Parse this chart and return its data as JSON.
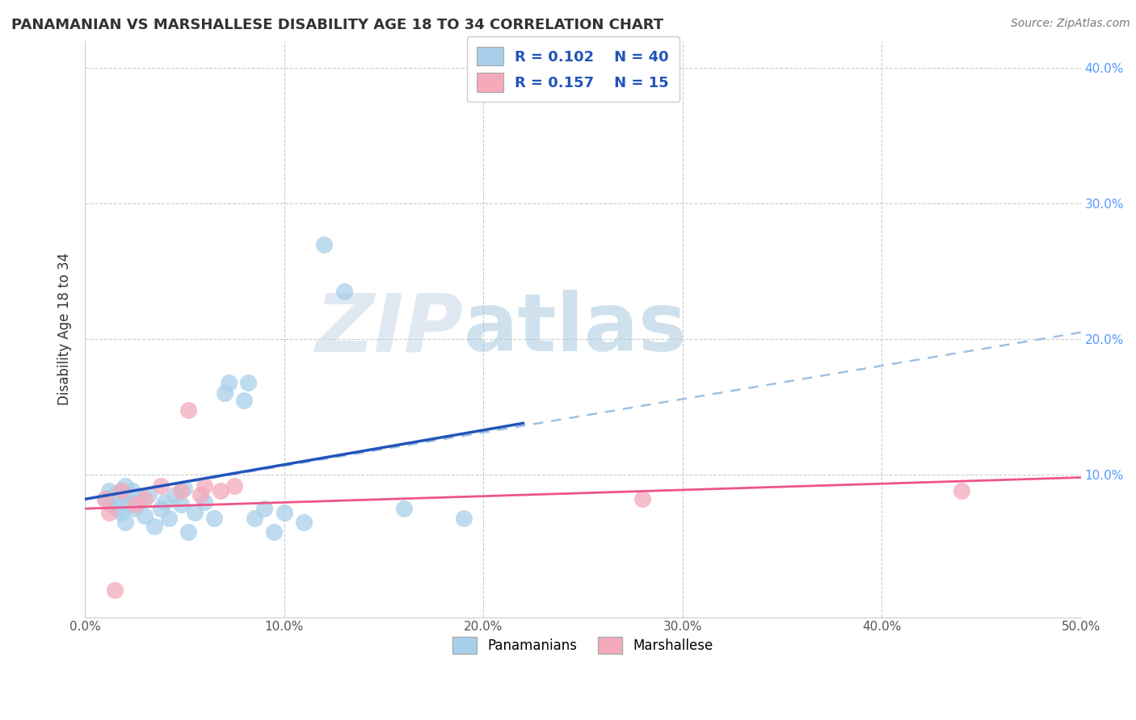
{
  "title": "PANAMANIAN VS MARSHALLESE DISABILITY AGE 18 TO 34 CORRELATION CHART",
  "source": "Source: ZipAtlas.com",
  "ylabel": "Disability Age 18 to 34",
  "xlim": [
    0.0,
    0.5
  ],
  "ylim": [
    -0.005,
    0.42
  ],
  "legend_r1": "R = 0.102",
  "legend_n1": "N = 40",
  "legend_r2": "R = 0.157",
  "legend_n2": "N = 15",
  "blue_color": "#A8CFEA",
  "pink_color": "#F4AABB",
  "blue_line_color": "#2255BB",
  "pink_line_color": "#EE5588",
  "dashed_line_color": "#A0C0E0",
  "watermark_color": "#D5E9F5",
  "background_color": "#FFFFFF",
  "grid_color": "#CCCCCC",
  "pan_x": [
    0.01,
    0.012,
    0.013,
    0.015,
    0.016,
    0.018,
    0.018,
    0.02,
    0.02,
    0.02,
    0.022,
    0.024,
    0.025,
    0.028,
    0.03,
    0.032,
    0.035,
    0.038,
    0.04,
    0.042,
    0.045,
    0.048,
    0.05,
    0.052,
    0.055,
    0.06,
    0.065,
    0.07,
    0.072,
    0.08,
    0.082,
    0.085,
    0.09,
    0.095,
    0.1,
    0.11,
    0.12,
    0.13,
    0.16,
    0.19
  ],
  "pan_y": [
    0.082,
    0.088,
    0.078,
    0.085,
    0.075,
    0.088,
    0.072,
    0.085,
    0.092,
    0.065,
    0.078,
    0.088,
    0.075,
    0.082,
    0.07,
    0.085,
    0.062,
    0.075,
    0.08,
    0.068,
    0.085,
    0.078,
    0.09,
    0.058,
    0.072,
    0.08,
    0.068,
    0.16,
    0.168,
    0.155,
    0.168,
    0.068,
    0.075,
    0.058,
    0.072,
    0.065,
    0.27,
    0.235,
    0.075,
    0.068
  ],
  "mar_x": [
    0.01,
    0.012,
    0.015,
    0.018,
    0.025,
    0.03,
    0.038,
    0.048,
    0.052,
    0.058,
    0.06,
    0.068,
    0.075,
    0.28,
    0.44
  ],
  "mar_y": [
    0.082,
    0.072,
    0.015,
    0.088,
    0.078,
    0.082,
    0.092,
    0.088,
    0.148,
    0.085,
    0.092,
    0.088,
    0.092,
    0.082,
    0.088
  ],
  "blue_line_x": [
    0.0,
    0.22
  ],
  "blue_line_y_start": 0.082,
  "blue_line_y_end": 0.138,
  "dashed_line_x": [
    0.0,
    0.5
  ],
  "dashed_line_y_start": 0.082,
  "dashed_line_y_end": 0.205,
  "pink_line_x": [
    0.0,
    0.5
  ],
  "pink_line_y_start": 0.075,
  "pink_line_y_end": 0.098
}
